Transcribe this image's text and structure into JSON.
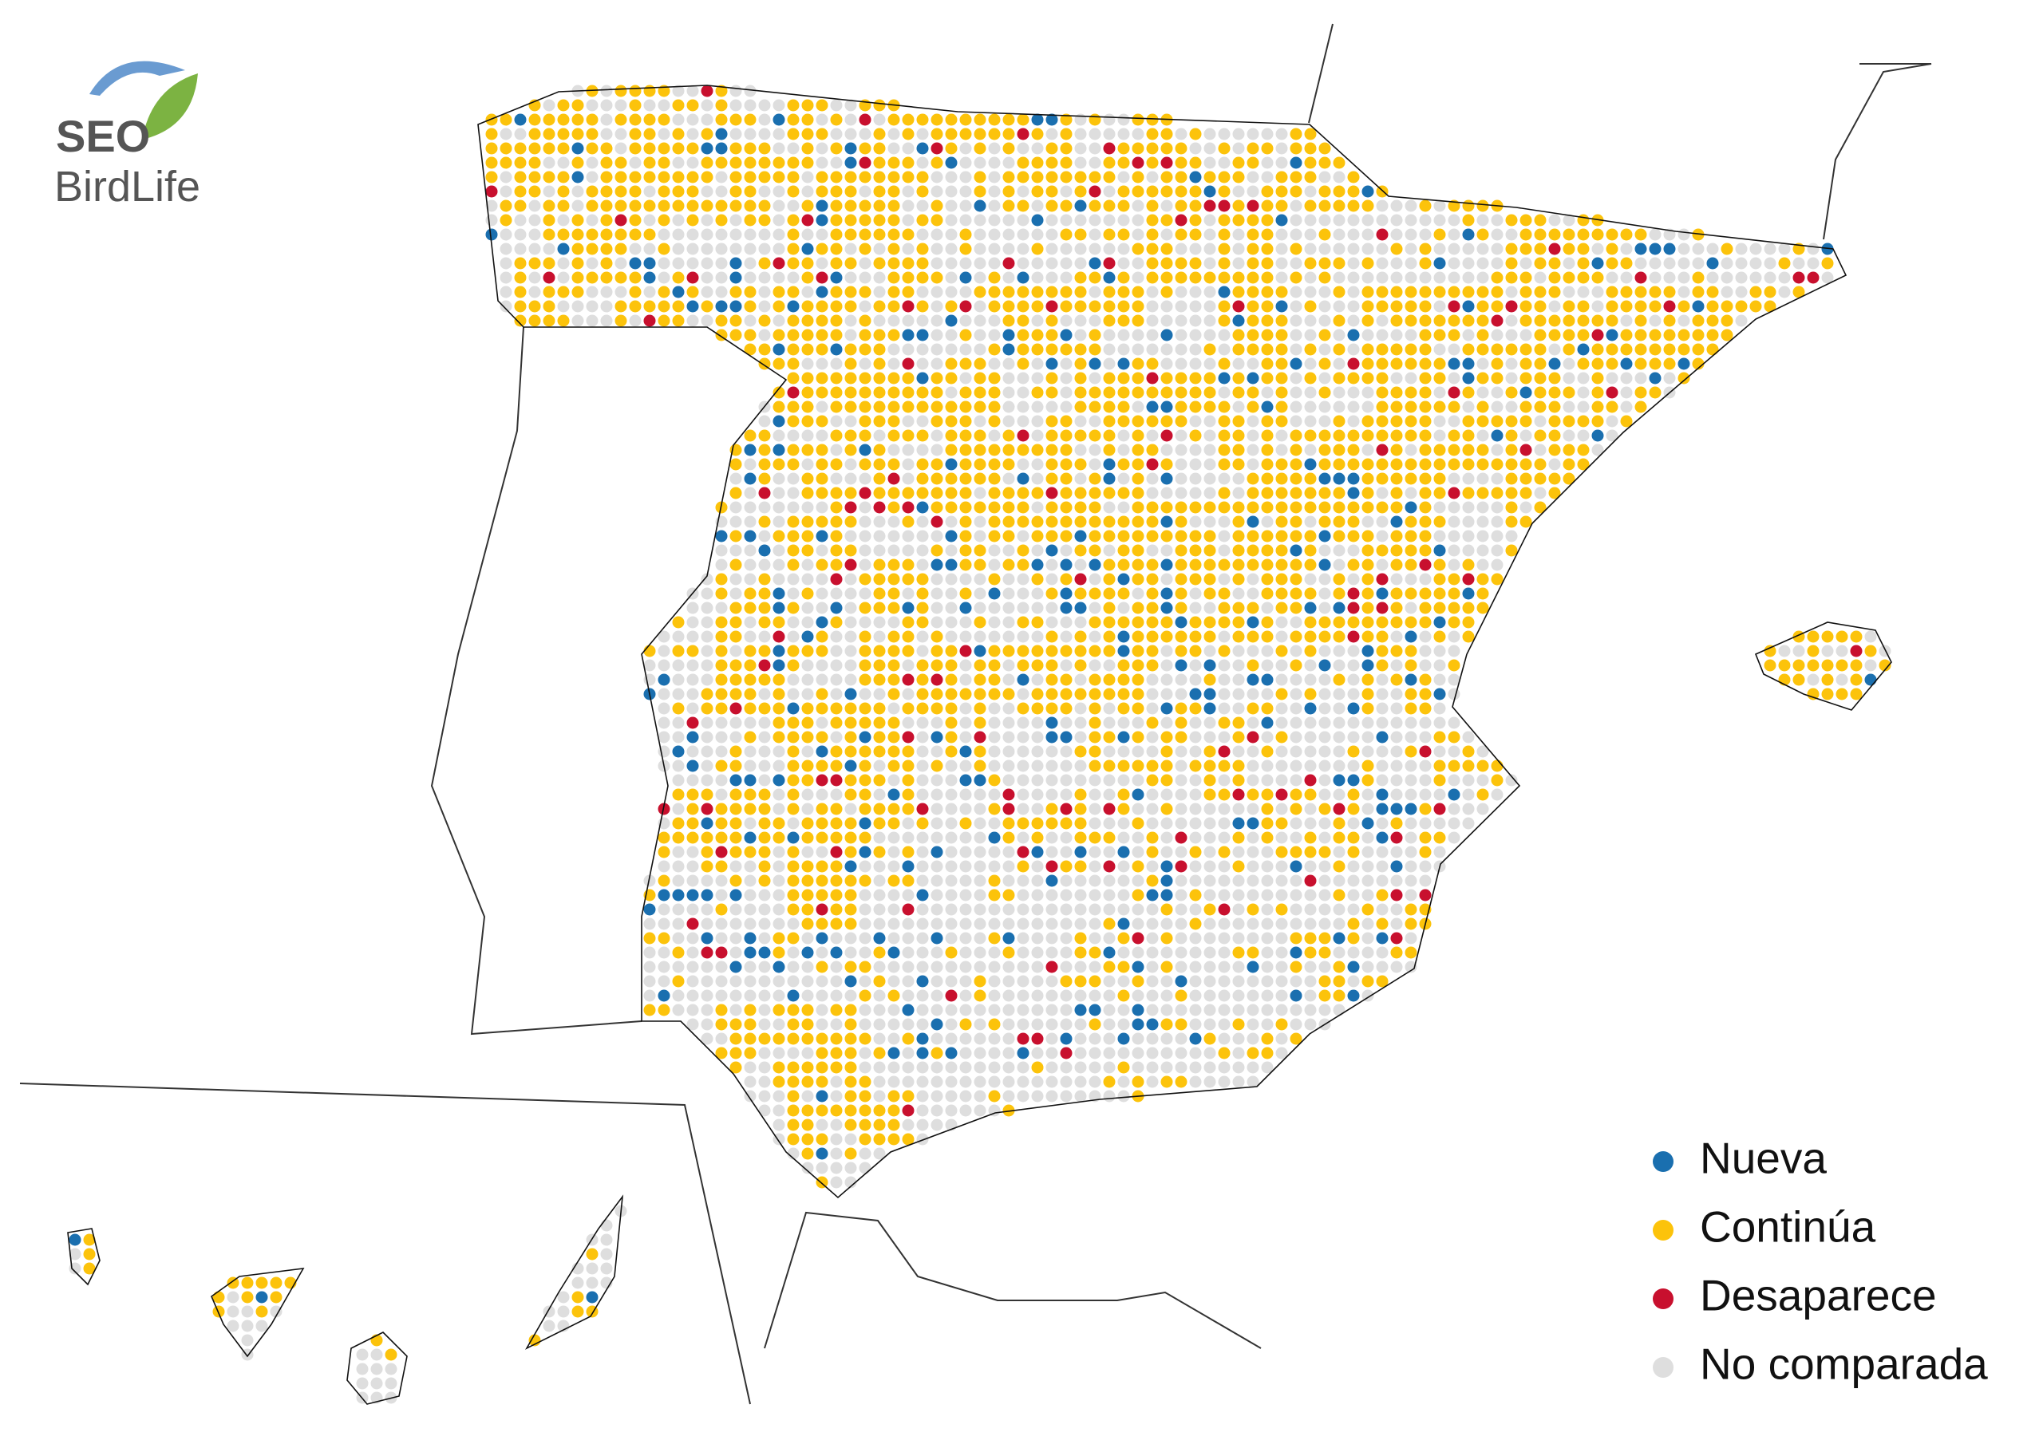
{
  "logo": {
    "line1": "SEO",
    "line2": "BirdLife"
  },
  "legend": [
    {
      "label": "Nueva",
      "color": "#1a6faf"
    },
    {
      "label": "Continúa",
      "color": "#fcc30b"
    },
    {
      "label": "Desaparece",
      "color": "#c8102e"
    },
    {
      "label": "No comparada",
      "color": "#dedede"
    }
  ]
}
